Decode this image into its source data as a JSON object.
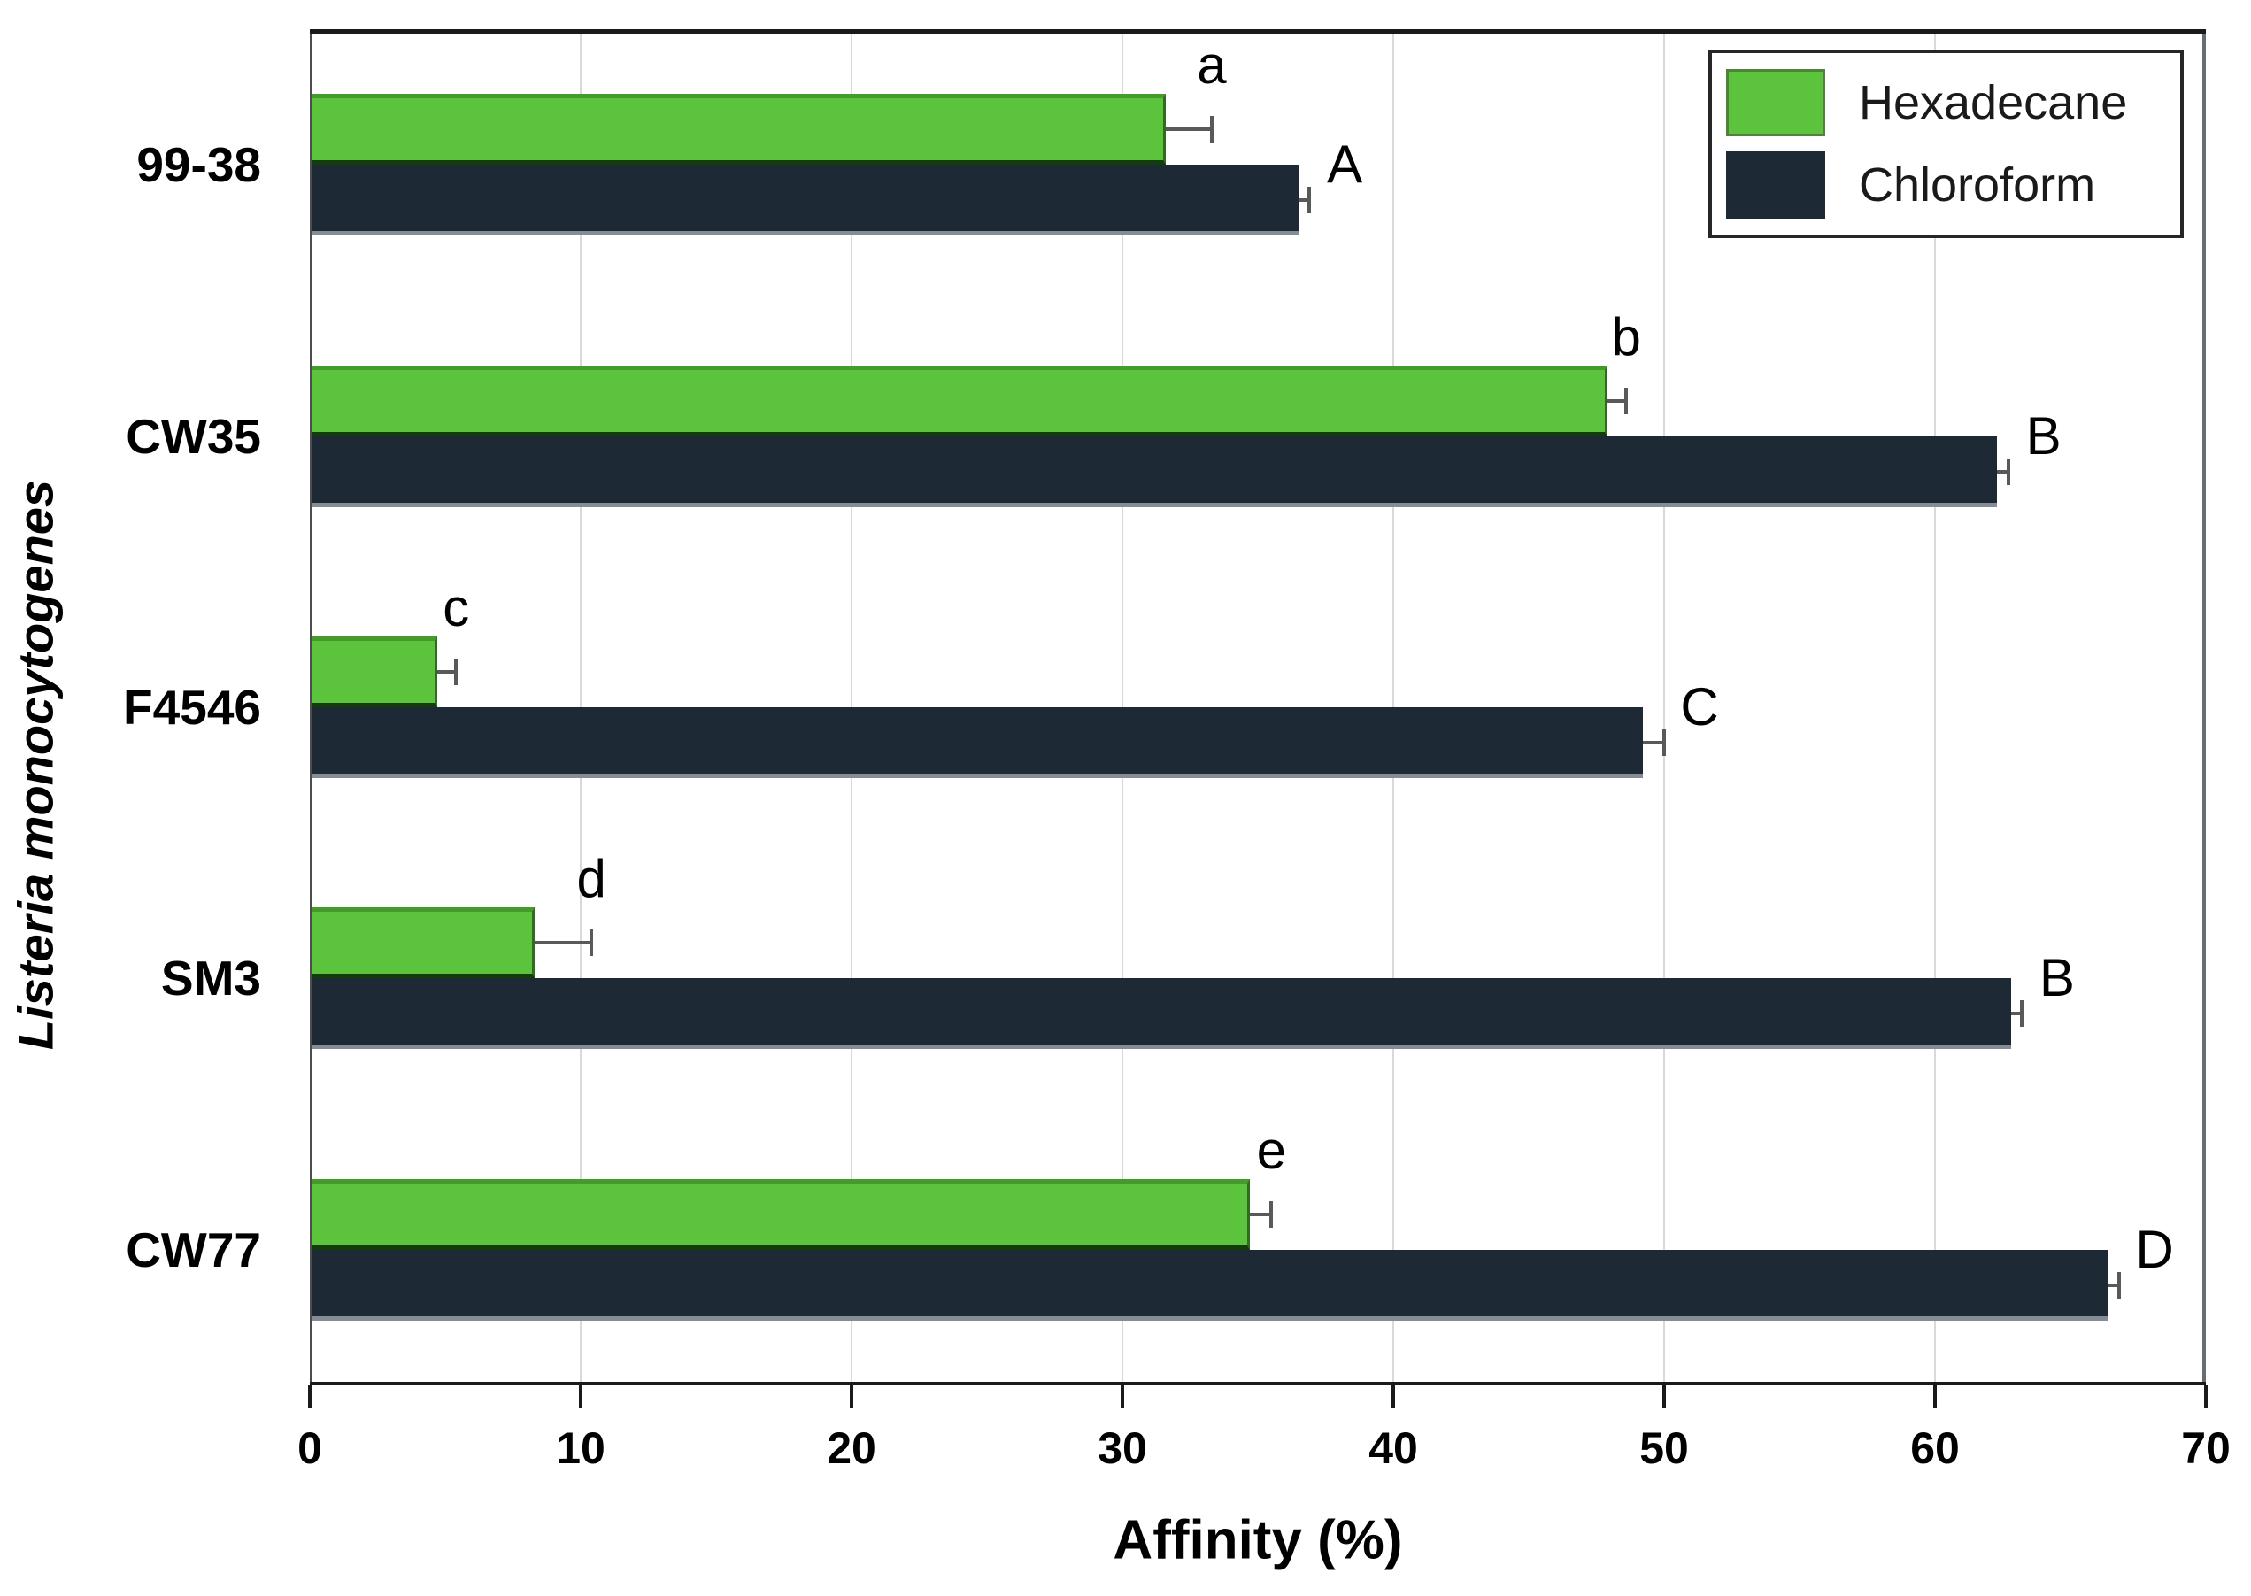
{
  "chart_data": {
    "type": "bar",
    "orientation": "horizontal",
    "title": "",
    "xlabel": "Affinity (%)",
    "ylabel": "Listeria monocytogenes",
    "xlim": [
      0,
      70
    ],
    "xticks": [
      "0",
      "10",
      "20",
      "30",
      "40",
      "50",
      "60",
      "70"
    ],
    "categories": [
      "99-38",
      "CW35",
      "F4546",
      "SM3",
      "CW77"
    ],
    "series": [
      {
        "name": "Hexadecane",
        "color": "#5cc43c",
        "values": [
          31.6,
          47.9,
          4.7,
          8.3,
          34.7
        ],
        "errors": [
          1.7,
          0.7,
          0.7,
          2.1,
          0.8
        ],
        "letters": [
          "a",
          "b",
          "c",
          "d",
          "e"
        ]
      },
      {
        "name": "Chloroform",
        "color": "#1d2935",
        "values": [
          36.5,
          62.3,
          49.2,
          62.8,
          66.4
        ],
        "errors": [
          0.4,
          0.4,
          0.8,
          0.4,
          0.4
        ],
        "letters": [
          "A",
          "B",
          "C",
          "B",
          "D"
        ]
      }
    ],
    "legend_position": "top-right",
    "grid": "vertical",
    "colors": {
      "grid": "#d9d9d9",
      "error_bar": "#595959",
      "axis": "#1a1a1a",
      "text": "#000000"
    }
  }
}
